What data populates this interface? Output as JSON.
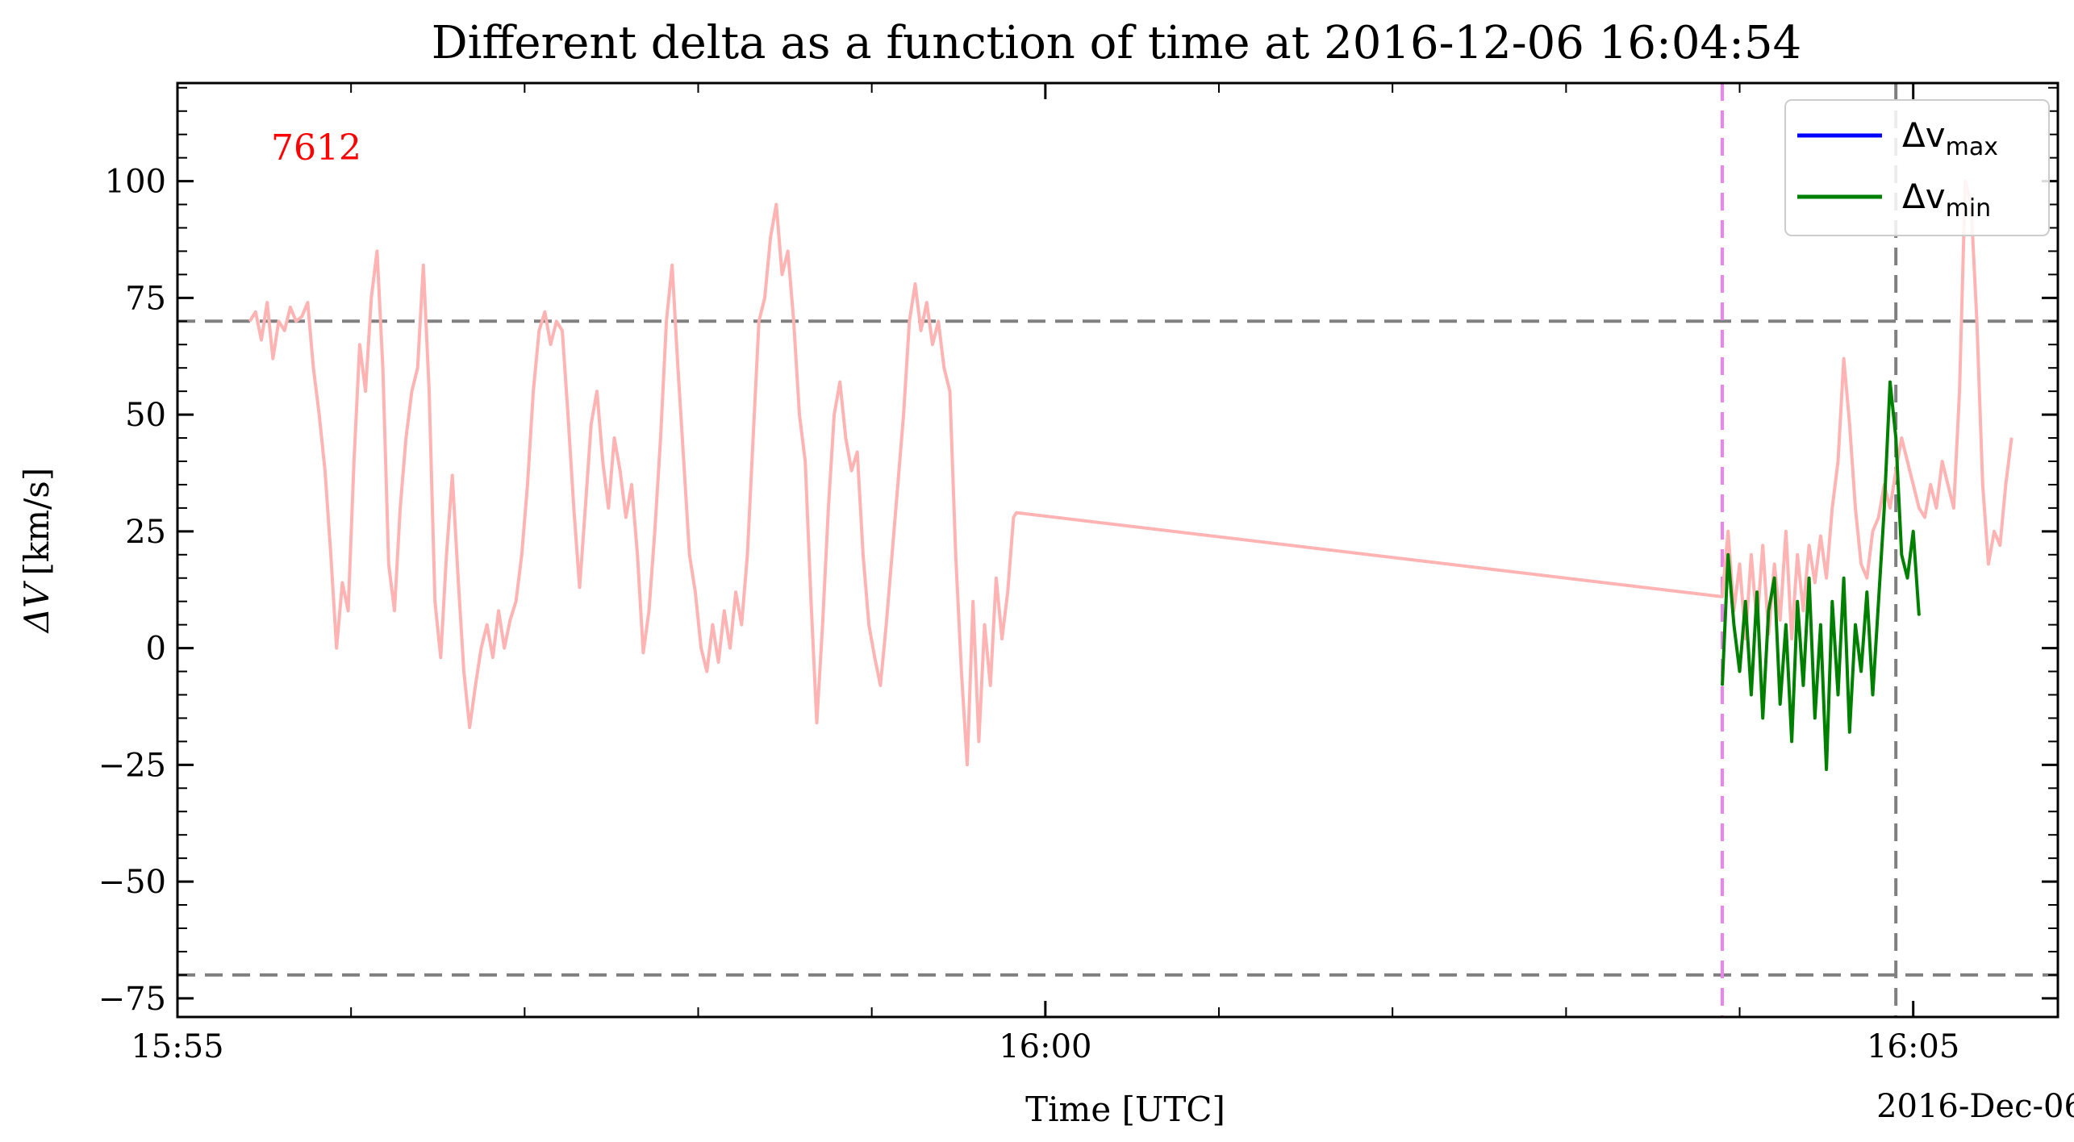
{
  "chart_data": {
    "type": "line",
    "title": "Different delta as a function of time at 2016-12-06 16:04:54",
    "xlabel": "Time [UTC]",
    "xlabel_secondary": "2016-Dec-06",
    "ylabel_base": "ΔV",
    "ylabel_unit": "[km/s]",
    "annotation": "7612",
    "annotation_color": "#ff0000",
    "xlim": [
      "15:55:00",
      "16:05:50"
    ],
    "ylim": [
      -79,
      121
    ],
    "x_ticks": [
      "15:55",
      "16:00",
      "16:05"
    ],
    "y_ticks": [
      -75,
      -50,
      -25,
      0,
      25,
      50,
      75,
      100
    ],
    "y_tick_labels": [
      "−75",
      "−50",
      "−25",
      "0",
      "25",
      "50",
      "75",
      "100"
    ],
    "grid": false,
    "legend_position": "top-right",
    "reference_lines": [
      {
        "orientation": "horizontal",
        "value": 70,
        "color": "#808080",
        "style": "dashed"
      },
      {
        "orientation": "horizontal",
        "value": -70,
        "color": "#808080",
        "style": "dashed"
      },
      {
        "orientation": "vertical",
        "value": "16:03:54",
        "color": "#ee82ee",
        "style": "dashed"
      },
      {
        "orientation": "vertical",
        "value": "16:04:54",
        "color": "#808080",
        "style": "dashed"
      }
    ],
    "legend": [
      {
        "label": "Δv",
        "subscript": "max",
        "color": "#0000ff"
      },
      {
        "label": "Δv",
        "subscript": "min",
        "color": "#008000"
      }
    ],
    "series": [
      {
        "color": "#ffb3b3",
        "points": [
          [
            "15:55:25",
            70
          ],
          [
            "15:55:27",
            72
          ],
          [
            "15:55:29",
            66
          ],
          [
            "15:55:31",
            74
          ],
          [
            "15:55:33",
            62
          ],
          [
            "15:55:35",
            70
          ],
          [
            "15:55:37",
            68
          ],
          [
            "15:55:39",
            73
          ],
          [
            "15:55:41",
            70
          ],
          [
            "15:55:43",
            71
          ],
          [
            "15:55:45",
            74
          ],
          [
            "15:55:47",
            60
          ],
          [
            "15:55:49",
            50
          ],
          [
            "15:55:51",
            38
          ],
          [
            "15:55:53",
            20
          ],
          [
            "15:55:55",
            0
          ],
          [
            "15:55:57",
            14
          ],
          [
            "15:55:59",
            8
          ],
          [
            "15:56:01",
            40
          ],
          [
            "15:56:03",
            65
          ],
          [
            "15:56:05",
            55
          ],
          [
            "15:56:07",
            75
          ],
          [
            "15:56:09",
            85
          ],
          [
            "15:56:11",
            60
          ],
          [
            "15:56:13",
            18
          ],
          [
            "15:56:15",
            8
          ],
          [
            "15:56:17",
            30
          ],
          [
            "15:56:19",
            45
          ],
          [
            "15:56:21",
            55
          ],
          [
            "15:56:23",
            60
          ],
          [
            "15:56:25",
            82
          ],
          [
            "15:56:27",
            55
          ],
          [
            "15:56:29",
            10
          ],
          [
            "15:56:31",
            -2
          ],
          [
            "15:56:33",
            20
          ],
          [
            "15:56:35",
            37
          ],
          [
            "15:56:37",
            15
          ],
          [
            "15:56:39",
            -5
          ],
          [
            "15:56:41",
            -17
          ],
          [
            "15:56:43",
            -8
          ],
          [
            "15:56:45",
            0
          ],
          [
            "15:56:47",
            5
          ],
          [
            "15:56:49",
            -2
          ],
          [
            "15:56:51",
            8
          ],
          [
            "15:56:53",
            0
          ],
          [
            "15:56:55",
            6
          ],
          [
            "15:56:57",
            10
          ],
          [
            "15:56:59",
            20
          ],
          [
            "15:57:01",
            35
          ],
          [
            "15:57:03",
            55
          ],
          [
            "15:57:05",
            68
          ],
          [
            "15:57:07",
            72
          ],
          [
            "15:57:09",
            65
          ],
          [
            "15:57:11",
            70
          ],
          [
            "15:57:13",
            68
          ],
          [
            "15:57:15",
            50
          ],
          [
            "15:57:17",
            30
          ],
          [
            "15:57:19",
            13
          ],
          [
            "15:57:21",
            30
          ],
          [
            "15:57:23",
            48
          ],
          [
            "15:57:25",
            55
          ],
          [
            "15:57:27",
            40
          ],
          [
            "15:57:29",
            30
          ],
          [
            "15:57:31",
            45
          ],
          [
            "15:57:33",
            38
          ],
          [
            "15:57:35",
            28
          ],
          [
            "15:57:37",
            35
          ],
          [
            "15:57:39",
            20
          ],
          [
            "15:57:41",
            -1
          ],
          [
            "15:57:43",
            8
          ],
          [
            "15:57:45",
            25
          ],
          [
            "15:57:47",
            45
          ],
          [
            "15:57:49",
            70
          ],
          [
            "15:57:51",
            82
          ],
          [
            "15:57:53",
            60
          ],
          [
            "15:57:55",
            40
          ],
          [
            "15:57:57",
            20
          ],
          [
            "15:57:59",
            12
          ],
          [
            "15:58:01",
            0
          ],
          [
            "15:58:03",
            -5
          ],
          [
            "15:58:05",
            5
          ],
          [
            "15:58:07",
            -3
          ],
          [
            "15:58:09",
            8
          ],
          [
            "15:58:11",
            0
          ],
          [
            "15:58:13",
            12
          ],
          [
            "15:58:15",
            5
          ],
          [
            "15:58:17",
            20
          ],
          [
            "15:58:19",
            45
          ],
          [
            "15:58:21",
            70
          ],
          [
            "15:58:23",
            75
          ],
          [
            "15:58:25",
            88
          ],
          [
            "15:58:27",
            95
          ],
          [
            "15:58:29",
            80
          ],
          [
            "15:58:31",
            85
          ],
          [
            "15:58:33",
            70
          ],
          [
            "15:58:35",
            50
          ],
          [
            "15:58:37",
            40
          ],
          [
            "15:58:39",
            10
          ],
          [
            "15:58:41",
            -16
          ],
          [
            "15:58:43",
            5
          ],
          [
            "15:58:45",
            30
          ],
          [
            "15:58:47",
            50
          ],
          [
            "15:58:49",
            57
          ],
          [
            "15:58:51",
            45
          ],
          [
            "15:58:53",
            38
          ],
          [
            "15:58:55",
            42
          ],
          [
            "15:58:57",
            20
          ],
          [
            "15:58:59",
            5
          ],
          [
            "15:59:01",
            -2
          ],
          [
            "15:59:03",
            -8
          ],
          [
            "15:59:05",
            5
          ],
          [
            "15:59:07",
            20
          ],
          [
            "15:59:09",
            35
          ],
          [
            "15:59:11",
            50
          ],
          [
            "15:59:13",
            70
          ],
          [
            "15:59:15",
            78
          ],
          [
            "15:59:17",
            68
          ],
          [
            "15:59:19",
            74
          ],
          [
            "15:59:21",
            65
          ],
          [
            "15:59:23",
            70
          ],
          [
            "15:59:25",
            60
          ],
          [
            "15:59:27",
            55
          ],
          [
            "15:59:29",
            20
          ],
          [
            "15:59:31",
            -5
          ],
          [
            "15:59:33",
            -25
          ],
          [
            "15:59:35",
            10
          ],
          [
            "15:59:37",
            -20
          ],
          [
            "15:59:39",
            5
          ],
          [
            "15:59:41",
            -8
          ],
          [
            "15:59:43",
            15
          ],
          [
            "15:59:45",
            2
          ],
          [
            "15:59:47",
            12
          ],
          [
            "15:59:49",
            28
          ],
          [
            "15:59:50",
            29
          ],
          [
            "16:03:54",
            11
          ],
          [
            "16:03:56",
            25
          ],
          [
            "16:03:58",
            8
          ],
          [
            "16:04:00",
            18
          ],
          [
            "16:04:02",
            2
          ],
          [
            "16:04:04",
            20
          ],
          [
            "16:04:06",
            5
          ],
          [
            "16:04:08",
            22
          ],
          [
            "16:04:10",
            3
          ],
          [
            "16:04:12",
            18
          ],
          [
            "16:04:14",
            6
          ],
          [
            "16:04:16",
            25
          ],
          [
            "16:04:18",
            2
          ],
          [
            "16:04:20",
            20
          ],
          [
            "16:04:22",
            8
          ],
          [
            "16:04:24",
            22
          ],
          [
            "16:04:26",
            14
          ],
          [
            "16:04:28",
            24
          ],
          [
            "16:04:30",
            15
          ],
          [
            "16:04:32",
            30
          ],
          [
            "16:04:34",
            40
          ],
          [
            "16:04:36",
            62
          ],
          [
            "16:04:38",
            48
          ],
          [
            "16:04:40",
            30
          ],
          [
            "16:04:42",
            18
          ],
          [
            "16:04:44",
            15
          ],
          [
            "16:04:46",
            25
          ],
          [
            "16:04:48",
            28
          ],
          [
            "16:04:50",
            35
          ],
          [
            "16:04:52",
            30
          ],
          [
            "16:04:54",
            38
          ],
          [
            "16:04:56",
            45
          ],
          [
            "16:04:58",
            40
          ],
          [
            "16:05:00",
            35
          ],
          [
            "16:05:02",
            30
          ],
          [
            "16:05:04",
            28
          ],
          [
            "16:05:06",
            35
          ],
          [
            "16:05:08",
            30
          ],
          [
            "16:05:10",
            40
          ],
          [
            "16:05:12",
            35
          ],
          [
            "16:05:14",
            30
          ],
          [
            "16:05:16",
            55
          ],
          [
            "16:05:18",
            100
          ],
          [
            "16:05:20",
            95
          ],
          [
            "16:05:22",
            70
          ],
          [
            "16:05:24",
            35
          ],
          [
            "16:05:26",
            18
          ],
          [
            "16:05:28",
            25
          ],
          [
            "16:05:30",
            22
          ],
          [
            "16:05:32",
            35
          ],
          [
            "16:05:34",
            45
          ]
        ]
      },
      {
        "name": "Δvmin",
        "color": "#008000",
        "points": [
          [
            "16:03:54",
            -8
          ],
          [
            "16:03:56",
            20
          ],
          [
            "16:03:58",
            5
          ],
          [
            "16:04:00",
            -5
          ],
          [
            "16:04:02",
            10
          ],
          [
            "16:04:04",
            -10
          ],
          [
            "16:04:06",
            12
          ],
          [
            "16:04:08",
            -15
          ],
          [
            "16:04:10",
            8
          ],
          [
            "16:04:12",
            15
          ],
          [
            "16:04:14",
            -12
          ],
          [
            "16:04:16",
            5
          ],
          [
            "16:04:18",
            -20
          ],
          [
            "16:04:20",
            10
          ],
          [
            "16:04:22",
            -8
          ],
          [
            "16:04:24",
            15
          ],
          [
            "16:04:26",
            -15
          ],
          [
            "16:04:28",
            5
          ],
          [
            "16:04:30",
            -26
          ],
          [
            "16:04:32",
            10
          ],
          [
            "16:04:34",
            -10
          ],
          [
            "16:04:36",
            15
          ],
          [
            "16:04:38",
            -18
          ],
          [
            "16:04:40",
            5
          ],
          [
            "16:04:42",
            -5
          ],
          [
            "16:04:44",
            12
          ],
          [
            "16:04:46",
            -10
          ],
          [
            "16:04:48",
            10
          ],
          [
            "16:04:50",
            30
          ],
          [
            "16:04:52",
            57
          ],
          [
            "16:04:54",
            45
          ],
          [
            "16:04:56",
            20
          ],
          [
            "16:04:58",
            15
          ],
          [
            "16:05:00",
            25
          ],
          [
            "16:05:02",
            7
          ]
        ]
      }
    ]
  }
}
